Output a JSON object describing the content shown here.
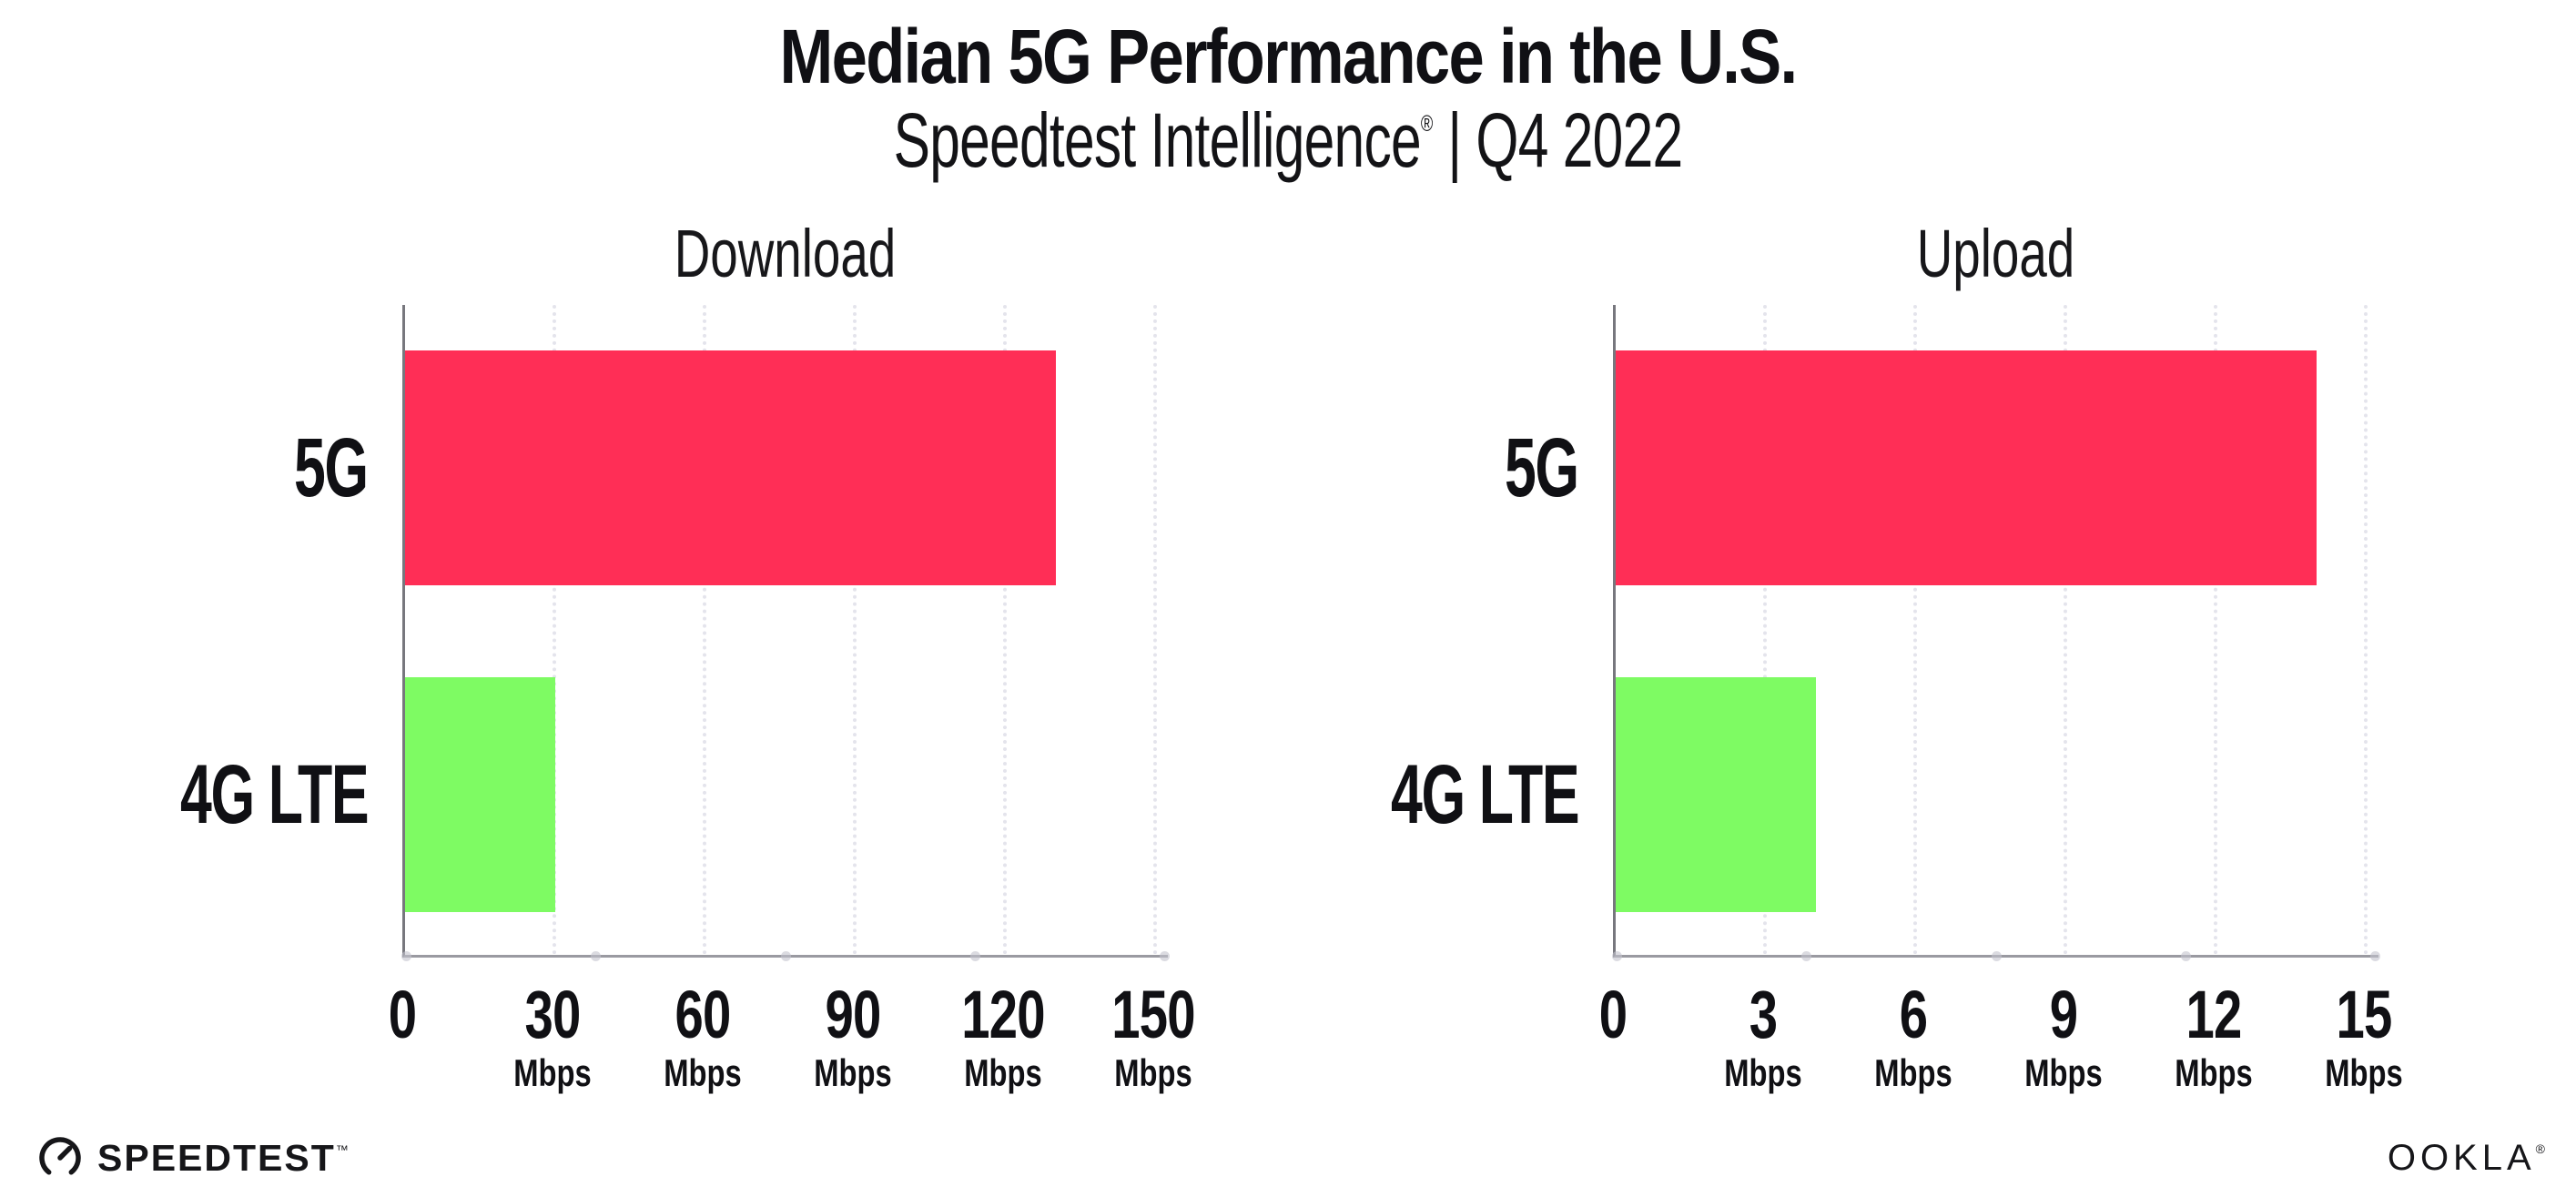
{
  "header": {
    "title": "Median 5G Performance in the U.S.",
    "subtitle_brand": "Speedtest Intelligence",
    "subtitle_mark": "®",
    "subtitle_rest": " | Q4 2022"
  },
  "chart_data": [
    {
      "type": "bar",
      "orientation": "horizontal",
      "title": "Download",
      "categories": [
        "5G",
        "4G LTE"
      ],
      "values": [
        130,
        30
      ],
      "unit": "Mbps",
      "xticks": [
        0,
        30,
        60,
        90,
        120,
        150
      ],
      "xlim": [
        0,
        153
      ],
      "grid": "vertical-dotted",
      "legend": "none",
      "bar_colors": [
        "#FF2E56",
        "#7EFB63"
      ]
    },
    {
      "type": "bar",
      "orientation": "horizontal",
      "title": "Upload",
      "categories": [
        "5G",
        "4G LTE"
      ],
      "values": [
        14,
        4
      ],
      "unit": "Mbps",
      "xticks": [
        0,
        3,
        6,
        9,
        12,
        15
      ],
      "xlim": [
        0,
        15.3
      ],
      "grid": "vertical-dotted",
      "legend": "none",
      "bar_colors": [
        "#FF2E56",
        "#7EFB63"
      ]
    }
  ],
  "footer": {
    "speedtest_label": "SPEEDTEST",
    "speedtest_mark": "™",
    "ookla_label": "OOKLA",
    "ookla_mark": "®"
  },
  "colors": {
    "bar_5g": "#FF2E56",
    "bar_4g_lte": "#7EFB63",
    "grid_dotted": "#E4E4EC",
    "axis_vertical": "#77777E",
    "axis_horizontal": "#9A9AA1",
    "text": "#101014"
  }
}
